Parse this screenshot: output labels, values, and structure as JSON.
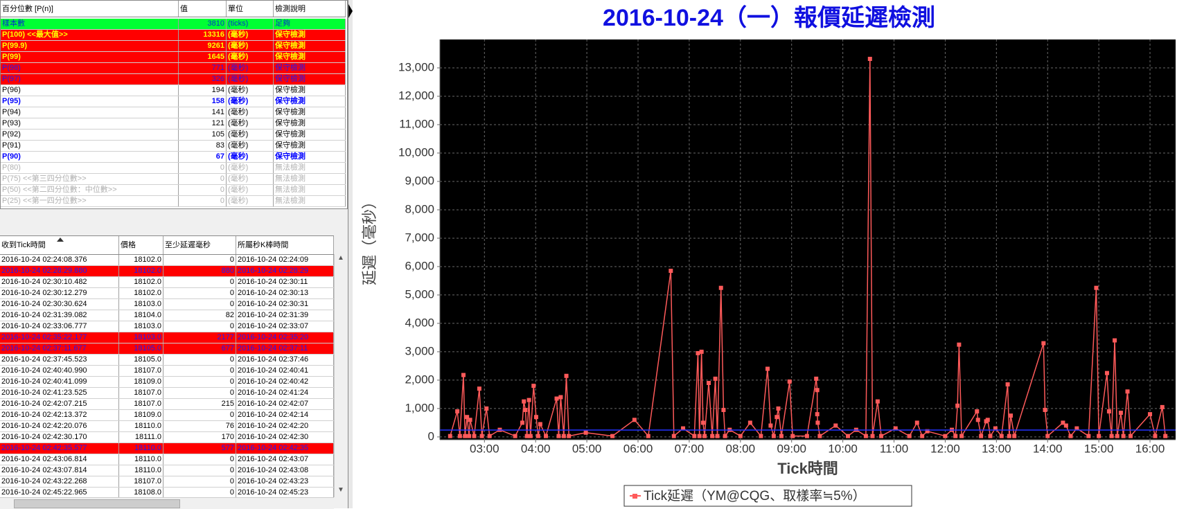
{
  "percentile_table": {
    "headers": [
      "百分位數 [P(n)]",
      "值",
      "單位",
      "檢測說明"
    ],
    "rows": [
      {
        "style": "green",
        "cells": [
          "樣本數",
          3810,
          "(ticks)",
          "足夠"
        ]
      },
      {
        "style": "red-yellow",
        "cells": [
          "P(100)  <<最大值>>",
          13316,
          "(毫秒)",
          "保守檢測"
        ]
      },
      {
        "style": "red-yellow",
        "cells": [
          "P(99.9)",
          9261,
          "(毫秒)",
          "保守檢測"
        ]
      },
      {
        "style": "red-yellow",
        "cells": [
          "P(99)",
          1645,
          "(毫秒)",
          "保守檢測"
        ]
      },
      {
        "style": "red-blue",
        "cells": [
          "P(98)",
          771,
          "(毫秒)",
          "保守檢測"
        ]
      },
      {
        "style": "red-blue",
        "cells": [
          "P(97)",
          326,
          "(毫秒)",
          "保守檢測"
        ]
      },
      {
        "style": "white",
        "cells": [
          "P(96)",
          194,
          "(毫秒)",
          "保守檢測"
        ]
      },
      {
        "style": "white-blue",
        "cells": [
          "P(95)",
          158,
          "(毫秒)",
          "保守檢測"
        ]
      },
      {
        "style": "white",
        "cells": [
          "P(94)",
          141,
          "(毫秒)",
          "保守檢測"
        ]
      },
      {
        "style": "white",
        "cells": [
          "P(93)",
          121,
          "(毫秒)",
          "保守檢測"
        ]
      },
      {
        "style": "white",
        "cells": [
          "P(92)",
          105,
          "(毫秒)",
          "保守檢測"
        ]
      },
      {
        "style": "white",
        "cells": [
          "P(91)",
          83,
          "(毫秒)",
          "保守檢測"
        ]
      },
      {
        "style": "white-blue",
        "cells": [
          "P(90)",
          67,
          "(毫秒)",
          "保守檢測"
        ]
      },
      {
        "style": "gray",
        "cells": [
          "P(80)",
          0,
          "(毫秒)",
          "無法檢測"
        ]
      },
      {
        "style": "gray",
        "cells": [
          "P(75)  <<第三四分位數>>",
          0,
          "(毫秒)",
          "無法檢測"
        ]
      },
      {
        "style": "gray",
        "cells": [
          "P(50)  <<第二四分位數：中位數>>",
          0,
          "(毫秒)",
          "無法檢測"
        ]
      },
      {
        "style": "gray",
        "cells": [
          "P(25)  <<第一四分位數>>",
          0,
          "(毫秒)",
          "無法檢測"
        ]
      }
    ]
  },
  "tick_table": {
    "headers": [
      "收到Tick時間",
      "價格",
      "至少延遲毫秒",
      "所屬秒K棒時間"
    ],
    "rows": [
      {
        "style": "white",
        "cells": [
          "2016-10-24 02:24:08.376",
          "18102.0",
          0,
          "2016-10-24 02:24:09"
        ]
      },
      {
        "style": "red",
        "cells": [
          "2016-10-24 02:28:29.880",
          "18102.0",
          880,
          "2016-10-24 02:28:29"
        ]
      },
      {
        "style": "white",
        "cells": [
          "2016-10-24 02:30:10.482",
          "18102.0",
          0,
          "2016-10-24 02:30:11"
        ]
      },
      {
        "style": "white",
        "cells": [
          "2016-10-24 02:30:12.279",
          "18102.0",
          0,
          "2016-10-24 02:30:13"
        ]
      },
      {
        "style": "white",
        "cells": [
          "2016-10-24 02:30:30.624",
          "18103.0",
          0,
          "2016-10-24 02:30:31"
        ]
      },
      {
        "style": "white",
        "cells": [
          "2016-10-24 02:31:39.082",
          "18104.0",
          82,
          "2016-10-24 02:31:39"
        ]
      },
      {
        "style": "white",
        "cells": [
          "2016-10-24 02:33:06.777",
          "18103.0",
          0,
          "2016-10-24 02:33:07"
        ]
      },
      {
        "style": "red",
        "cells": [
          "2016-10-24 02:35:22.177",
          "18103.0",
          2177,
          "2016-10-24 02:35:20"
        ]
      },
      {
        "style": "red",
        "cells": [
          "2016-10-24 02:37:11.677",
          "18105.0",
          677,
          "2016-10-24 02:37:11"
        ]
      },
      {
        "style": "white",
        "cells": [
          "2016-10-24 02:37:45.523",
          "18105.0",
          0,
          "2016-10-24 02:37:46"
        ]
      },
      {
        "style": "white",
        "cells": [
          "2016-10-24 02:40:40.990",
          "18107.0",
          0,
          "2016-10-24 02:40:41"
        ]
      },
      {
        "style": "white",
        "cells": [
          "2016-10-24 02:40:41.099",
          "18109.0",
          0,
          "2016-10-24 02:40:42"
        ]
      },
      {
        "style": "white",
        "cells": [
          "2016-10-24 02:41:23.525",
          "18107.0",
          0,
          "2016-10-24 02:41:24"
        ]
      },
      {
        "style": "white",
        "cells": [
          "2016-10-24 02:42:07.215",
          "18107.0",
          215,
          "2016-10-24 02:42:07"
        ]
      },
      {
        "style": "white",
        "cells": [
          "2016-10-24 02:42:13.372",
          "18109.0",
          0,
          "2016-10-24 02:42:14"
        ]
      },
      {
        "style": "white",
        "cells": [
          "2016-10-24 02:42:20.076",
          "18110.0",
          76,
          "2016-10-24 02:42:20"
        ]
      },
      {
        "style": "white",
        "cells": [
          "2016-10-24 02:42:30.170",
          "18111.0",
          170,
          "2016-10-24 02:42:30"
        ]
      },
      {
        "style": "red",
        "cells": [
          "2016-10-24 02:42:35.577",
          "18110.0",
          577,
          "2016-10-24 02:42:35"
        ]
      },
      {
        "style": "white",
        "cells": [
          "2016-10-24 02:43:06.814",
          "18110.0",
          0,
          "2016-10-24 02:43:07"
        ]
      },
      {
        "style": "white",
        "cells": [
          "2016-10-24 02:43:07.814",
          "18110.0",
          0,
          "2016-10-24 02:43:08"
        ]
      },
      {
        "style": "white",
        "cells": [
          "2016-10-24 02:43:22.268",
          "18107.0",
          0,
          "2016-10-24 02:43:23"
        ]
      },
      {
        "style": "white",
        "cells": [
          "2016-10-24 02:45:22.965",
          "18108.0",
          0,
          "2016-10-24 02:45:23"
        ]
      }
    ]
  },
  "chart_data": {
    "type": "line",
    "title": "2016-10-24（一）報價延遲檢測",
    "x_label": "Tick時間",
    "y_label": "延遲（毫秒）",
    "x": [
      2.33,
      2.47,
      2.52,
      2.59,
      2.62,
      2.66,
      2.7,
      2.72,
      2.8,
      2.9,
      2.95,
      3.04,
      3.1,
      3.3,
      3.6,
      3.74,
      3.77,
      3.8,
      3.83,
      3.87,
      3.9,
      3.96,
      4.01,
      4.05,
      4.09,
      4.2,
      4.41,
      4.45,
      4.49,
      4.55,
      4.6,
      4.65,
      4.98,
      5.5,
      5.93,
      6.2,
      6.64,
      6.7,
      6.88,
      7.1,
      7.17,
      7.2,
      7.24,
      7.27,
      7.3,
      7.38,
      7.45,
      7.51,
      7.55,
      7.62,
      7.67,
      7.7,
      7.79,
      8.0,
      8.19,
      8.4,
      8.53,
      8.59,
      8.65,
      8.71,
      8.74,
      8.8,
      8.96,
      9.02,
      9.3,
      9.48,
      9.5,
      9.5,
      9.51,
      9.55,
      9.86,
      10.1,
      10.26,
      10.45,
      10.53,
      10.58,
      10.68,
      10.75,
      11.03,
      11.3,
      11.45,
      11.55,
      11.65,
      12.0,
      12.13,
      12.2,
      12.24,
      12.27,
      12.32,
      12.62,
      12.64,
      12.7,
      12.8,
      12.83,
      12.88,
      12.98,
      13.1,
      13.22,
      13.25,
      13.28,
      13.35,
      13.92,
      13.95,
      14.0,
      14.3,
      14.36,
      14.45,
      14.57,
      14.8,
      14.95,
      15.0,
      15.16,
      15.2,
      15.25,
      15.31,
      15.36,
      15.43,
      15.48,
      15.56,
      15.62,
      16.0,
      16.1,
      16.24,
      16.3
    ],
    "series": [
      {
        "name": "Tick延遲（YM@CQG、取樣率≒5%）",
        "color": "#ff5a5a",
        "values": [
          30,
          900,
          30,
          2180,
          30,
          700,
          30,
          600,
          30,
          1700,
          30,
          1000,
          30,
          250,
          30,
          500,
          1250,
          950,
          30,
          1300,
          30,
          1800,
          700,
          30,
          450,
          30,
          1350,
          30,
          1400,
          30,
          2150,
          30,
          150,
          30,
          600,
          30,
          5850,
          30,
          300,
          30,
          2950,
          30,
          3000,
          500,
          30,
          1900,
          30,
          2050,
          30,
          5250,
          950,
          30,
          250,
          30,
          500,
          30,
          2400,
          400,
          30,
          700,
          1000,
          30,
          1950,
          30,
          30,
          2050,
          1650,
          800,
          500,
          30,
          400,
          30,
          250,
          30,
          13316,
          30,
          1250,
          30,
          300,
          30,
          500,
          30,
          200,
          30,
          250,
          30,
          1100,
          3250,
          30,
          900,
          600,
          30,
          550,
          600,
          30,
          300,
          30,
          1850,
          30,
          750,
          30,
          3300,
          950,
          30,
          500,
          400,
          30,
          300,
          30,
          5250,
          30,
          2250,
          900,
          30,
          3400,
          30,
          850,
          30,
          1600,
          30,
          800,
          30,
          1050,
          30
        ]
      }
    ],
    "hline": {
      "value": 240,
      "color": "#2233ff"
    },
    "xlim": [
      2.13,
      16.5
    ],
    "xticks": [
      {
        "value": 3,
        "label": "03:00"
      },
      {
        "value": 4,
        "label": "04:00"
      },
      {
        "value": 5,
        "label": "05:00"
      },
      {
        "value": 6,
        "label": "06:00"
      },
      {
        "value": 7,
        "label": "07:00"
      },
      {
        "value": 8,
        "label": "08:00"
      },
      {
        "value": 9,
        "label": "09:00"
      },
      {
        "value": 10,
        "label": "10:00"
      },
      {
        "value": 11,
        "label": "11:00"
      },
      {
        "value": 12,
        "label": "12:00"
      },
      {
        "value": 13,
        "label": "13:00"
      },
      {
        "value": 14,
        "label": "14:00"
      },
      {
        "value": 15,
        "label": "15:00"
      },
      {
        "value": 16,
        "label": "16:00"
      }
    ],
    "ylim": [
      -100,
      14000
    ],
    "yticks": [
      0,
      {
        "value": 1000,
        "label": "1,000"
      },
      {
        "value": 2000,
        "label": "2,000"
      },
      {
        "value": 3000,
        "label": "3,000"
      },
      {
        "value": 4000,
        "label": "4,000"
      },
      {
        "value": 5000,
        "label": "5,000"
      },
      {
        "value": 6000,
        "label": "6,000"
      },
      {
        "value": 7000,
        "label": "7,000"
      },
      {
        "value": 8000,
        "label": "8,000"
      },
      {
        "value": 9000,
        "label": "9,000"
      },
      {
        "value": 10000,
        "label": "10,000"
      },
      {
        "value": 11000,
        "label": "11,000"
      },
      {
        "value": 12000,
        "label": "12,000"
      },
      {
        "value": 13000,
        "label": "13,000"
      }
    ],
    "grid": true,
    "legend": "bottom"
  }
}
